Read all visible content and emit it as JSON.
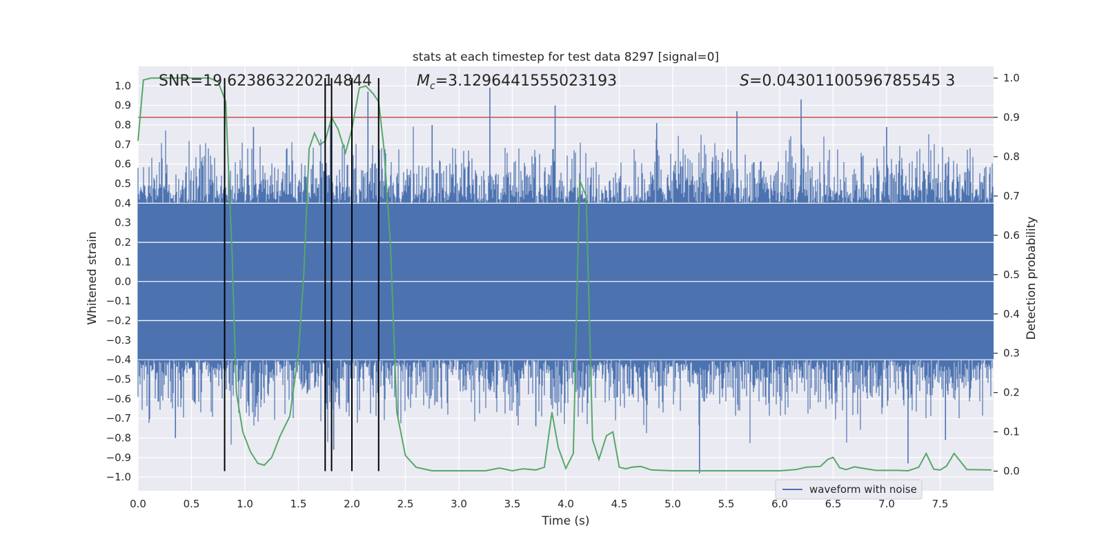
{
  "chart_data": {
    "type": "line",
    "title": "stats at each timestep for test data 8297 [signal=0]",
    "xlabel": "Time (s)",
    "ylabel_left": "Whitened strain",
    "ylabel_right": "Detection probability",
    "xlim": [
      0.0,
      8.0
    ],
    "ylim_left": [
      -1.07,
      1.1
    ],
    "ylim_right": [
      -0.05,
      1.03
    ],
    "xticks": [
      0.0,
      0.5,
      1.0,
      1.5,
      2.0,
      2.5,
      3.0,
      3.5,
      4.0,
      4.5,
      5.0,
      5.5,
      6.0,
      6.5,
      7.0,
      7.5
    ],
    "xtick_labels": [
      "0.0",
      "0.5",
      "1.0",
      "1.5",
      "2.0",
      "2.5",
      "3.0",
      "3.5",
      "4.0",
      "4.5",
      "5.0",
      "5.5",
      "6.0",
      "6.5",
      "7.0",
      "7.5"
    ],
    "yticks_left": [
      -1.0,
      -0.9,
      -0.8,
      -0.7,
      -0.6,
      -0.5,
      -0.4,
      -0.3,
      -0.2,
      -0.1,
      0.0,
      0.1,
      0.2,
      0.3,
      0.4,
      0.5,
      0.6,
      0.7,
      0.8,
      0.9,
      1.0
    ],
    "ytick_labels_left": [
      "−1.0",
      "−0.9",
      "−0.8",
      "−0.7",
      "−0.6",
      "−0.5",
      "−0.4",
      "−0.3",
      "−0.2",
      "−0.1",
      "0.0",
      "0.1",
      "0.2",
      "0.3",
      "0.4",
      "0.5",
      "0.6",
      "0.7",
      "0.8",
      "0.9",
      "1.0"
    ],
    "yticks_right": [
      0.0,
      0.1,
      0.2,
      0.3,
      0.4,
      0.5,
      0.6,
      0.7,
      0.8,
      0.9,
      1.0
    ],
    "ytick_labels_right": [
      "0.0",
      "0.1",
      "0.2",
      "0.3",
      "0.4",
      "0.5",
      "0.6",
      "0.7",
      "0.8",
      "0.9",
      "1.0"
    ],
    "grid": true,
    "annotations": [
      {
        "name": "snr-annotation",
        "prefix": "SNR=",
        "value": "19.623863220214844"
      },
      {
        "name": "chirp-mass-annotation",
        "symbol": "M",
        "subscript": "c",
        "prefix": "=",
        "value": "3.1296441555023193"
      },
      {
        "name": "s-annotation",
        "symbol": "S",
        "prefix": "=",
        "value": "0.04301100596785545 3"
      }
    ],
    "threshold": {
      "axis": "right",
      "value": 0.9,
      "color": "#c44e52"
    },
    "detection_markers_x": [
      0.81,
      1.75,
      1.81,
      2.0,
      2.25
    ],
    "series": [
      {
        "name": "waveform with noise",
        "axis": "left",
        "color": "#4c72b0",
        "core_envelope": 0.4,
        "noise_seed": 8297,
        "spikes": [
          {
            "x": 3.29,
            "y": 0.99
          },
          {
            "x": 2.15,
            "y": 0.97
          },
          {
            "x": 3.9,
            "y": 0.9
          },
          {
            "x": 5.6,
            "y": 0.87
          },
          {
            "x": 6.2,
            "y": 0.93
          },
          {
            "x": 4.85,
            "y": 0.81
          },
          {
            "x": 1.8,
            "y": 0.8
          },
          {
            "x": 1.08,
            "y": 0.79
          },
          {
            "x": 2.75,
            "y": 0.8
          },
          {
            "x": 7.0,
            "y": 0.79
          },
          {
            "x": 5.25,
            "y": -0.98
          },
          {
            "x": 1.83,
            "y": -0.86
          },
          {
            "x": 0.35,
            "y": -0.8
          },
          {
            "x": 7.2,
            "y": -0.93
          },
          {
            "x": 7.55,
            "y": -0.81
          },
          {
            "x": 3.72,
            "y": -0.74
          }
        ]
      },
      {
        "name": "detection probability",
        "axis": "right",
        "color": "#55a868",
        "x": [
          0.0,
          0.05,
          0.12,
          0.2,
          0.3,
          0.5,
          0.6,
          0.67,
          0.75,
          0.82,
          0.88,
          0.92,
          0.98,
          1.05,
          1.12,
          1.18,
          1.25,
          1.33,
          1.42,
          1.5,
          1.55,
          1.6,
          1.65,
          1.7,
          1.75,
          1.81,
          1.87,
          1.94,
          2.0,
          2.07,
          2.13,
          2.2,
          2.25,
          2.3,
          2.36,
          2.42,
          2.5,
          2.6,
          2.75,
          3.0,
          3.25,
          3.38,
          3.5,
          3.6,
          3.72,
          3.8,
          3.87,
          3.93,
          4.0,
          4.07,
          4.13,
          4.19,
          4.25,
          4.31,
          4.38,
          4.44,
          4.5,
          4.56,
          4.62,
          4.7,
          4.8,
          5.0,
          5.5,
          6.0,
          6.15,
          6.25,
          6.38,
          6.45,
          6.5,
          6.56,
          6.62,
          6.7,
          6.76,
          6.9,
          7.1,
          7.2,
          7.3,
          7.37,
          7.44,
          7.5,
          7.56,
          7.63,
          7.75,
          7.98
        ],
        "y": [
          0.84,
          0.995,
          1.0,
          1.0,
          1.0,
          1.0,
          1.0,
          1.0,
          0.99,
          0.94,
          0.55,
          0.2,
          0.1,
          0.05,
          0.02,
          0.015,
          0.035,
          0.09,
          0.14,
          0.3,
          0.5,
          0.82,
          0.86,
          0.83,
          0.84,
          0.9,
          0.87,
          0.81,
          0.87,
          0.975,
          0.98,
          0.96,
          0.94,
          0.82,
          0.58,
          0.15,
          0.04,
          0.01,
          0.001,
          0.001,
          0.001,
          0.008,
          0.001,
          0.006,
          0.003,
          0.01,
          0.15,
          0.06,
          0.007,
          0.045,
          0.74,
          0.7,
          0.08,
          0.03,
          0.09,
          0.1,
          0.01,
          0.006,
          0.01,
          0.012,
          0.003,
          0.001,
          0.001,
          0.001,
          0.004,
          0.01,
          0.012,
          0.03,
          0.035,
          0.009,
          0.004,
          0.011,
          0.008,
          0.002,
          0.002,
          0.001,
          0.01,
          0.045,
          0.005,
          0.003,
          0.013,
          0.045,
          0.004,
          0.003
        ]
      },
      {
        "name": "threshold",
        "axis": "right",
        "color": "#c44e52"
      },
      {
        "name": "detection markers",
        "axis": "left",
        "color": "#000000"
      }
    ],
    "legend": {
      "position": "bottom-right",
      "entries": [
        {
          "label": "waveform with noise",
          "color": "#4c72b0"
        }
      ]
    }
  }
}
